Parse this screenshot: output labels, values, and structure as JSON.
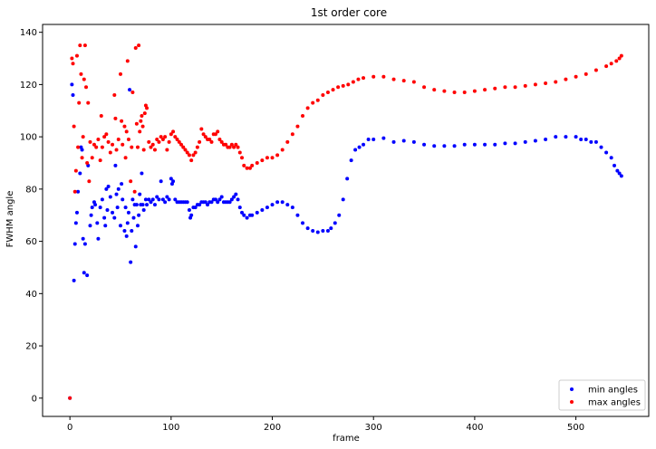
{
  "chart_data": {
    "type": "scatter",
    "title": "1st order core",
    "xlabel": "frame",
    "ylabel": "FWHM angle",
    "xlim": [
      -27,
      572
    ],
    "ylim": [
      -7,
      143
    ],
    "xticks": [
      0,
      100,
      200,
      300,
      400,
      500
    ],
    "yticks": [
      0,
      20,
      40,
      60,
      80,
      100,
      120,
      140
    ],
    "grid": false,
    "legend": "bottom-right",
    "series": [
      {
        "name": "min angles",
        "color": "#0000ff",
        "points": [
          [
            0,
            0
          ],
          [
            2,
            120
          ],
          [
            3,
            116
          ],
          [
            4,
            45
          ],
          [
            5,
            59
          ],
          [
            6,
            67
          ],
          [
            7,
            71
          ],
          [
            8,
            79
          ],
          [
            10,
            86
          ],
          [
            11,
            96
          ],
          [
            12,
            95
          ],
          [
            13,
            61
          ],
          [
            14,
            48
          ],
          [
            15,
            59
          ],
          [
            17,
            47
          ],
          [
            18,
            89
          ],
          [
            20,
            66
          ],
          [
            21,
            70
          ],
          [
            22,
            73
          ],
          [
            24,
            75
          ],
          [
            25,
            74
          ],
          [
            27,
            67
          ],
          [
            28,
            61
          ],
          [
            30,
            73
          ],
          [
            32,
            76
          ],
          [
            34,
            69
          ],
          [
            35,
            66
          ],
          [
            36,
            80
          ],
          [
            37,
            72
          ],
          [
            38,
            81
          ],
          [
            40,
            77
          ],
          [
            42,
            71
          ],
          [
            44,
            69
          ],
          [
            45,
            89
          ],
          [
            46,
            78
          ],
          [
            47,
            73
          ],
          [
            48,
            80
          ],
          [
            50,
            66
          ],
          [
            51,
            82
          ],
          [
            52,
            76
          ],
          [
            54,
            64
          ],
          [
            55,
            73
          ],
          [
            56,
            62
          ],
          [
            57,
            67
          ],
          [
            58,
            71
          ],
          [
            59,
            118
          ],
          [
            60,
            52
          ],
          [
            61,
            64
          ],
          [
            62,
            76
          ],
          [
            63,
            69
          ],
          [
            64,
            74
          ],
          [
            65,
            58
          ],
          [
            66,
            74
          ],
          [
            67,
            66
          ],
          [
            68,
            70
          ],
          [
            69,
            78
          ],
          [
            70,
            74
          ],
          [
            71,
            86
          ],
          [
            72,
            74
          ],
          [
            73,
            72
          ],
          [
            75,
            76
          ],
          [
            76,
            74
          ],
          [
            78,
            76
          ],
          [
            80,
            75
          ],
          [
            82,
            76
          ],
          [
            84,
            74
          ],
          [
            86,
            77
          ],
          [
            88,
            76
          ],
          [
            90,
            83
          ],
          [
            92,
            76
          ],
          [
            94,
            75
          ],
          [
            96,
            77
          ],
          [
            98,
            76
          ],
          [
            100,
            84
          ],
          [
            101,
            82
          ],
          [
            102,
            83
          ],
          [
            104,
            76
          ],
          [
            106,
            75
          ],
          [
            108,
            75
          ],
          [
            110,
            75
          ],
          [
            112,
            75
          ],
          [
            114,
            75
          ],
          [
            116,
            75
          ],
          [
            118,
            72
          ],
          [
            119,
            69
          ],
          [
            120,
            70
          ],
          [
            122,
            73
          ],
          [
            124,
            73
          ],
          [
            126,
            74
          ],
          [
            128,
            74
          ],
          [
            130,
            75
          ],
          [
            132,
            75
          ],
          [
            134,
            75
          ],
          [
            136,
            74
          ],
          [
            138,
            75
          ],
          [
            140,
            75
          ],
          [
            142,
            76
          ],
          [
            144,
            76
          ],
          [
            146,
            75
          ],
          [
            148,
            76
          ],
          [
            150,
            77
          ],
          [
            152,
            75
          ],
          [
            154,
            75
          ],
          [
            156,
            75
          ],
          [
            158,
            75
          ],
          [
            160,
            76
          ],
          [
            162,
            77
          ],
          [
            164,
            78
          ],
          [
            166,
            76
          ],
          [
            168,
            73
          ],
          [
            170,
            71
          ],
          [
            172,
            70
          ],
          [
            175,
            69
          ],
          [
            178,
            70
          ],
          [
            180,
            70
          ],
          [
            185,
            71
          ],
          [
            190,
            72
          ],
          [
            195,
            73
          ],
          [
            200,
            74
          ],
          [
            205,
            75
          ],
          [
            210,
            75
          ],
          [
            215,
            74
          ],
          [
            220,
            73
          ],
          [
            225,
            70
          ],
          [
            230,
            67
          ],
          [
            235,
            65
          ],
          [
            240,
            64
          ],
          [
            245,
            63.5
          ],
          [
            250,
            64
          ],
          [
            255,
            64
          ],
          [
            258,
            65
          ],
          [
            262,
            67
          ],
          [
            266,
            70
          ],
          [
            270,
            76
          ],
          [
            274,
            84
          ],
          [
            278,
            91
          ],
          [
            282,
            95
          ],
          [
            286,
            96
          ],
          [
            290,
            97
          ],
          [
            295,
            99
          ],
          [
            300,
            99
          ],
          [
            310,
            99.5
          ],
          [
            320,
            98
          ],
          [
            330,
            98.5
          ],
          [
            340,
            98
          ],
          [
            350,
            97
          ],
          [
            360,
            96.5
          ],
          [
            370,
            96.5
          ],
          [
            380,
            96.5
          ],
          [
            390,
            97
          ],
          [
            400,
            97
          ],
          [
            410,
            97
          ],
          [
            420,
            97
          ],
          [
            430,
            97.5
          ],
          [
            440,
            97.5
          ],
          [
            450,
            98
          ],
          [
            460,
            98.5
          ],
          [
            470,
            99
          ],
          [
            480,
            100
          ],
          [
            490,
            100
          ],
          [
            500,
            100
          ],
          [
            505,
            99
          ],
          [
            510,
            99
          ],
          [
            515,
            98
          ],
          [
            520,
            98
          ],
          [
            525,
            96
          ],
          [
            530,
            94
          ],
          [
            535,
            92
          ],
          [
            538,
            89
          ],
          [
            541,
            87
          ],
          [
            543,
            86
          ],
          [
            545,
            85
          ]
        ]
      },
      {
        "name": "max angles",
        "color": "#ff0000",
        "points": [
          [
            0,
            0
          ],
          [
            2,
            130
          ],
          [
            3,
            128
          ],
          [
            4,
            104
          ],
          [
            5,
            79
          ],
          [
            6,
            87
          ],
          [
            7,
            131
          ],
          [
            8,
            96
          ],
          [
            9,
            113
          ],
          [
            10,
            135
          ],
          [
            11,
            124
          ],
          [
            12,
            92
          ],
          [
            13,
            100
          ],
          [
            14,
            122
          ],
          [
            15,
            135
          ],
          [
            16,
            119
          ],
          [
            17,
            90
          ],
          [
            18,
            113
          ],
          [
            19,
            83
          ],
          [
            20,
            98
          ],
          [
            22,
            92
          ],
          [
            24,
            97
          ],
          [
            26,
            96
          ],
          [
            28,
            99
          ],
          [
            30,
            91
          ],
          [
            31,
            108
          ],
          [
            32,
            96
          ],
          [
            34,
            100
          ],
          [
            36,
            101
          ],
          [
            38,
            98
          ],
          [
            40,
            94
          ],
          [
            42,
            97
          ],
          [
            44,
            116
          ],
          [
            45,
            107
          ],
          [
            46,
            95
          ],
          [
            48,
            99
          ],
          [
            50,
            124
          ],
          [
            51,
            106
          ],
          [
            52,
            97
          ],
          [
            54,
            104
          ],
          [
            55,
            92
          ],
          [
            56,
            102
          ],
          [
            57,
            129
          ],
          [
            58,
            99
          ],
          [
            60,
            83
          ],
          [
            61,
            96
          ],
          [
            62,
            117
          ],
          [
            64,
            79
          ],
          [
            65,
            134
          ],
          [
            66,
            105
          ],
          [
            67,
            96
          ],
          [
            68,
            135
          ],
          [
            69,
            102
          ],
          [
            70,
            106
          ],
          [
            71,
            108
          ],
          [
            72,
            104
          ],
          [
            73,
            95
          ],
          [
            74,
            109
          ],
          [
            75,
            112
          ],
          [
            76,
            111
          ],
          [
            78,
            98
          ],
          [
            80,
            96
          ],
          [
            82,
            97
          ],
          [
            84,
            95
          ],
          [
            86,
            99
          ],
          [
            88,
            98
          ],
          [
            90,
            100
          ],
          [
            92,
            99
          ],
          [
            94,
            100
          ],
          [
            96,
            95
          ],
          [
            98,
            98
          ],
          [
            100,
            101
          ],
          [
            102,
            102
          ],
          [
            104,
            100
          ],
          [
            106,
            99
          ],
          [
            108,
            98
          ],
          [
            110,
            97
          ],
          [
            112,
            96
          ],
          [
            114,
            95
          ],
          [
            116,
            94
          ],
          [
            118,
            93
          ],
          [
            120,
            91
          ],
          [
            122,
            93
          ],
          [
            124,
            94
          ],
          [
            126,
            96
          ],
          [
            128,
            98
          ],
          [
            130,
            103
          ],
          [
            132,
            101
          ],
          [
            134,
            100
          ],
          [
            136,
            99
          ],
          [
            138,
            99
          ],
          [
            140,
            98
          ],
          [
            142,
            101
          ],
          [
            144,
            101
          ],
          [
            146,
            102
          ],
          [
            148,
            99
          ],
          [
            150,
            98
          ],
          [
            152,
            97
          ],
          [
            154,
            97
          ],
          [
            156,
            96
          ],
          [
            158,
            96
          ],
          [
            160,
            97
          ],
          [
            162,
            96
          ],
          [
            164,
            97
          ],
          [
            166,
            96
          ],
          [
            168,
            94
          ],
          [
            170,
            92
          ],
          [
            172,
            89
          ],
          [
            175,
            88
          ],
          [
            178,
            88
          ],
          [
            180,
            89
          ],
          [
            185,
            90
          ],
          [
            190,
            91
          ],
          [
            195,
            92
          ],
          [
            200,
            92
          ],
          [
            205,
            93
          ],
          [
            210,
            95
          ],
          [
            215,
            98
          ],
          [
            220,
            101
          ],
          [
            225,
            104
          ],
          [
            230,
            108
          ],
          [
            235,
            111
          ],
          [
            240,
            113
          ],
          [
            245,
            114
          ],
          [
            250,
            116
          ],
          [
            255,
            117
          ],
          [
            260,
            118
          ],
          [
            265,
            119
          ],
          [
            270,
            119.5
          ],
          [
            275,
            120
          ],
          [
            280,
            121
          ],
          [
            285,
            122
          ],
          [
            290,
            122.5
          ],
          [
            300,
            123
          ],
          [
            310,
            123
          ],
          [
            320,
            122
          ],
          [
            330,
            121.5
          ],
          [
            340,
            121
          ],
          [
            350,
            119
          ],
          [
            360,
            118
          ],
          [
            370,
            117.5
          ],
          [
            380,
            117
          ],
          [
            390,
            117
          ],
          [
            400,
            117.5
          ],
          [
            410,
            118
          ],
          [
            420,
            118.5
          ],
          [
            430,
            119
          ],
          [
            440,
            119
          ],
          [
            450,
            119.5
          ],
          [
            460,
            120
          ],
          [
            470,
            120.5
          ],
          [
            480,
            121
          ],
          [
            490,
            122
          ],
          [
            500,
            123
          ],
          [
            510,
            124
          ],
          [
            520,
            125.5
          ],
          [
            530,
            127
          ],
          [
            535,
            128
          ],
          [
            540,
            129
          ],
          [
            543,
            130
          ],
          [
            545,
            131
          ]
        ]
      }
    ]
  }
}
